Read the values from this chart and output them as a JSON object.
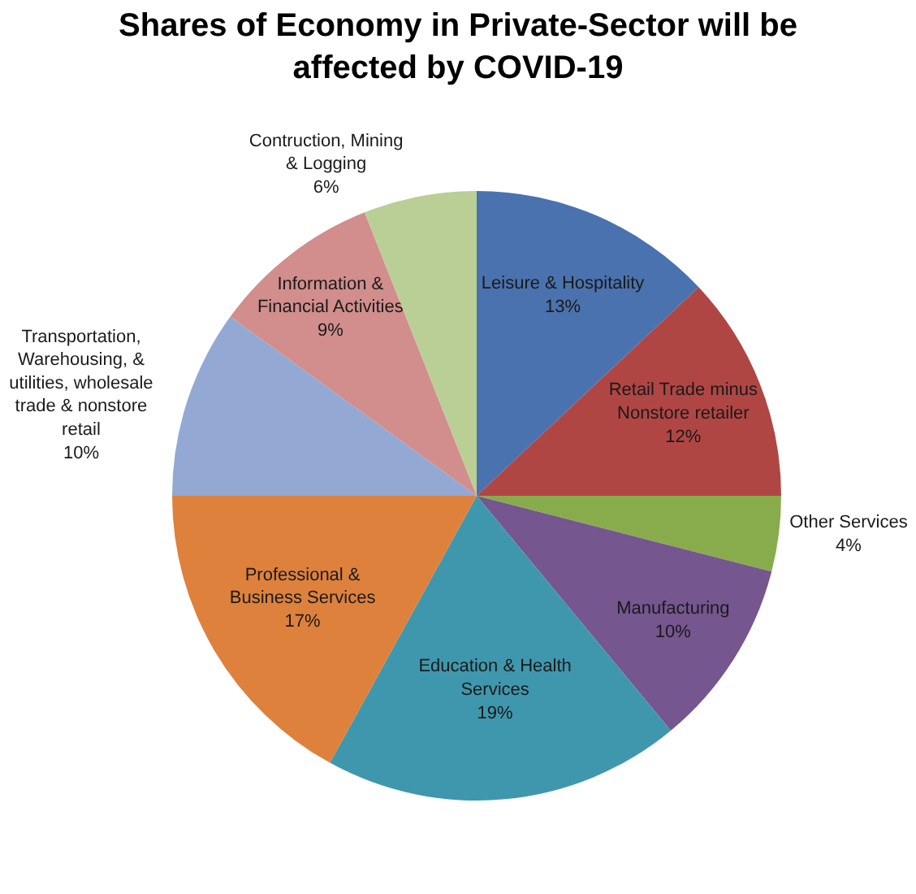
{
  "chart_data": {
    "type": "pie",
    "title": "Shares of Economy in Private-Sector will be\naffected by COVID-19",
    "categories": [
      "Leisure & Hospitality",
      "Retail Trade minus\nNonstore retailer",
      "Other Services",
      "Manufacturing",
      "Education & Health\nServices",
      "Professional &\nBusiness Services",
      "Transportation,\nWarehousing, &\nutilities, wholesale\ntrade & nonstore\nretail",
      "Information &\nFinancial Activities",
      "Contruction, Mining\n& Logging"
    ],
    "values": [
      13,
      12,
      4,
      10,
      19,
      17,
      10,
      9,
      6
    ],
    "colors": [
      "#4a72ae",
      "#b04644",
      "#88ac4c",
      "#75568f",
      "#3f97ad",
      "#de813c",
      "#93a9d3",
      "#d18e8c",
      "#b9cf95"
    ],
    "value_labels": [
      "13%",
      "12%",
      "4%",
      "10%",
      "19%",
      "17%",
      "10%",
      "9%",
      "6%"
    ]
  }
}
